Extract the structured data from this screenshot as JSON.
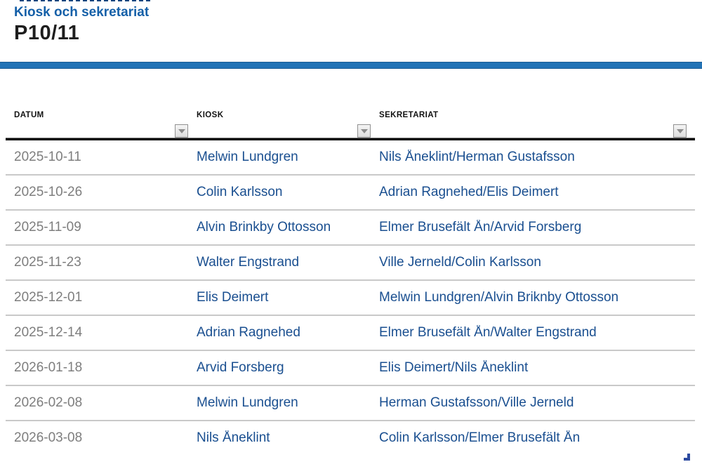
{
  "header": {
    "subtitle": "Kiosk och sekretariat",
    "title": "P10/11"
  },
  "table": {
    "columns": [
      {
        "label": "DATUM"
      },
      {
        "label": "KIOSK"
      },
      {
        "label": "SEKRETARIAT"
      }
    ],
    "filter_icon": "chevron-down-icon",
    "rows": [
      {
        "datum": "2025-10-11",
        "kiosk": "Melwin Lundgren",
        "sekretariat": "Nils Åneklint/Herman Gustafsson"
      },
      {
        "datum": "2025-10-26",
        "kiosk": "Colin Karlsson",
        "sekretariat": "Adrian Ragnehed/Elis Deimert"
      },
      {
        "datum": "2025-11-09",
        "kiosk": "Alvin Brinkby Ottosson",
        "sekretariat": "Elmer Brusefält Ån/Arvid Forsberg"
      },
      {
        "datum": "2025-11-23",
        "kiosk": "Walter Engstrand",
        "sekretariat": "Ville Jerneld/Colin Karlsson"
      },
      {
        "datum": "2025-12-01",
        "kiosk": "Elis Deimert",
        "sekretariat": "Melwin Lundgren/Alvin Briknby Ottosson"
      },
      {
        "datum": "2025-12-14",
        "kiosk": "Adrian Ragnehed",
        "sekretariat": "Elmer Brusefält Ån/Walter Engstrand"
      },
      {
        "datum": "2026-01-18",
        "kiosk": "Arvid Forsberg",
        "sekretariat": "Elis Deimert/Nils Åneklint"
      },
      {
        "datum": "2026-02-08",
        "kiosk": "Melwin Lundgren",
        "sekretariat": "Herman Gustafsson/Ville Jerneld"
      },
      {
        "datum": "2026-03-08",
        "kiosk": "Nils Åneklint",
        "sekretariat": "Colin Karlsson/Elmer Brusefält Ån"
      }
    ]
  },
  "colors": {
    "accent_bar_blue": "#2273b6",
    "subtitle_blue": "#1560a8",
    "name_link_blue": "#1a4f90",
    "date_gray": "#7e7e7e"
  }
}
